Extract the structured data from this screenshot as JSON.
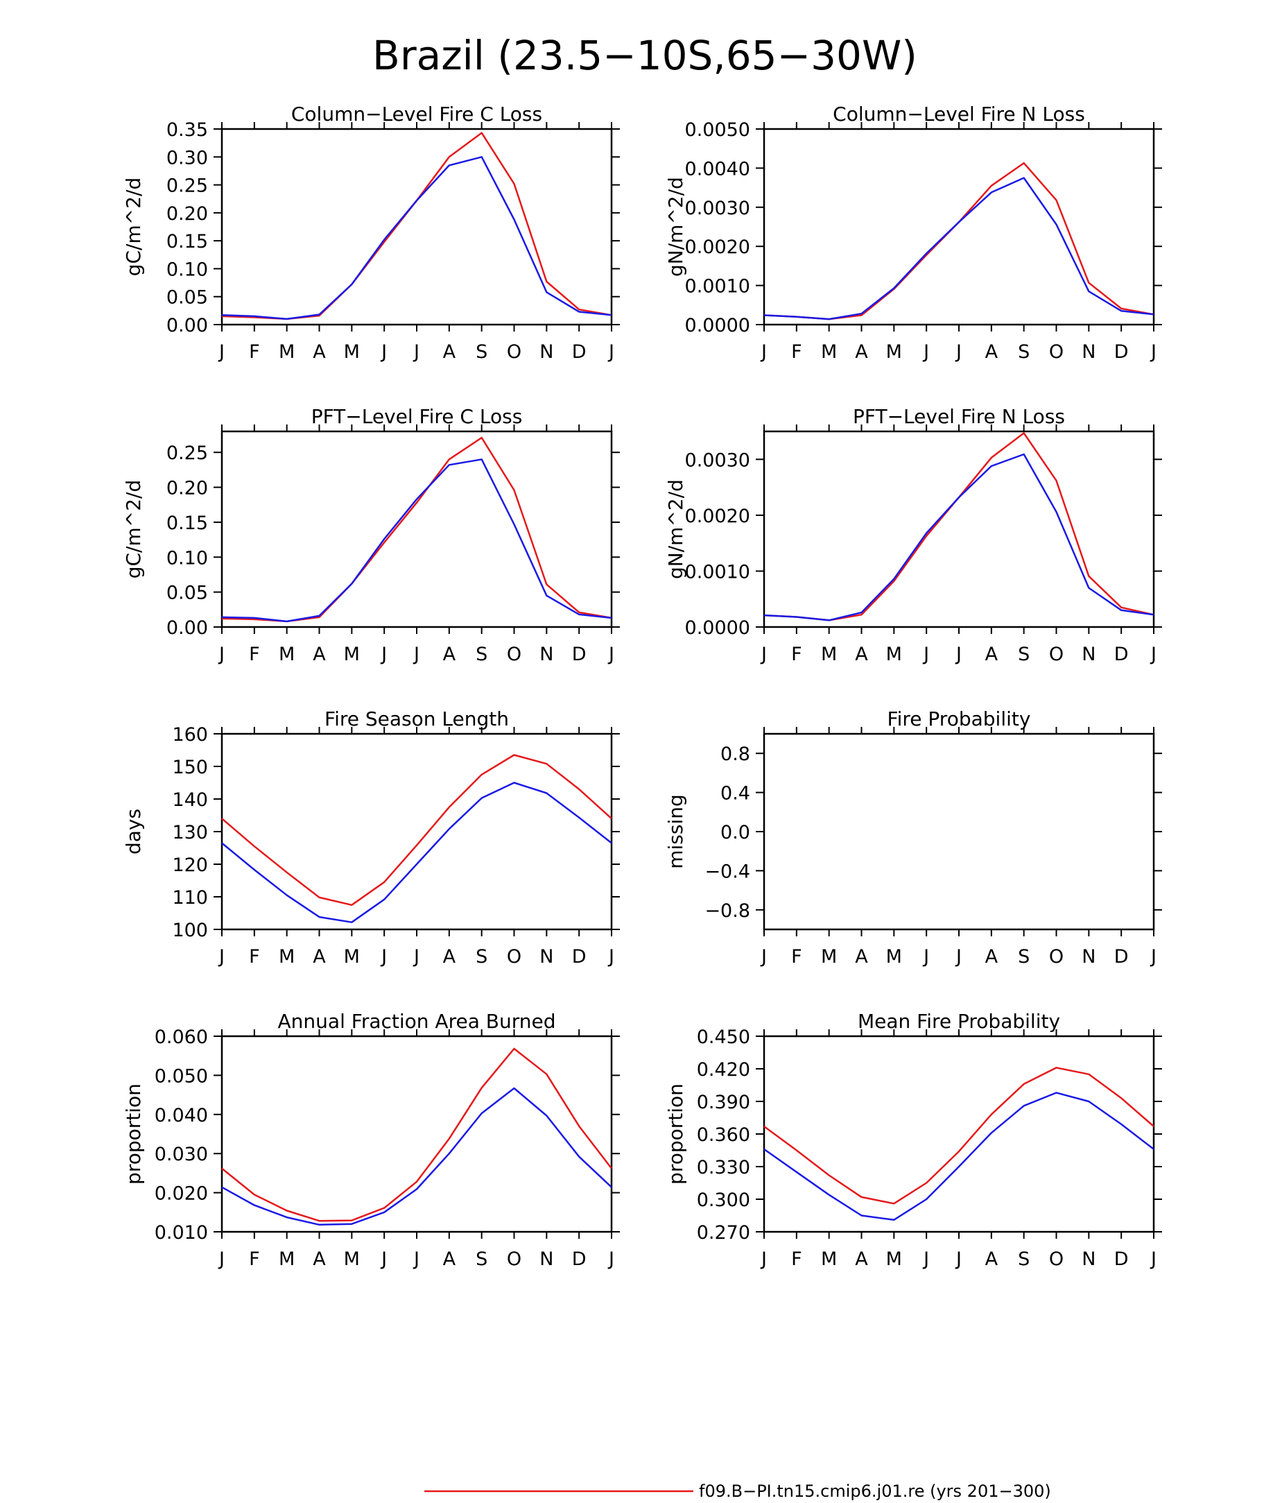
{
  "figure": {
    "title": "Brazil (23.5−10S,65−30W)",
    "legend": [
      {
        "label": "f09.B−PI.tn15.cmip6.j01.re (yrs 201−300)",
        "color": "#e41a1c"
      }
    ]
  },
  "colors": {
    "case1": "#e41a1c",
    "case2": "#1a1ae4"
  },
  "chart_data": [
    {
      "type": "line",
      "title": "Column−Level Fire C Loss",
      "ylabel": "gC/m^2/d",
      "categories": [
        "J",
        "F",
        "M",
        "A",
        "M",
        "J",
        "J",
        "A",
        "S",
        "O",
        "N",
        "D",
        "J"
      ],
      "ylim": [
        0,
        0.35
      ],
      "yticks": [
        0,
        0.05,
        0.1,
        0.15,
        0.2,
        0.25,
        0.3,
        0.35
      ],
      "ytick_labels": [
        "0.00",
        "0.05",
        "0.10",
        "0.15",
        "0.20",
        "0.25",
        "0.30",
        "0.35"
      ],
      "series": [
        {
          "color": "#e41a1c",
          "values": [
            0.015,
            0.013,
            0.01,
            0.016,
            0.072,
            0.148,
            0.222,
            0.3,
            0.343,
            0.252,
            0.077,
            0.027,
            0.017
          ]
        },
        {
          "color": "#1a1ae4",
          "values": [
            0.017,
            0.015,
            0.01,
            0.018,
            0.072,
            0.152,
            0.222,
            0.285,
            0.3,
            0.188,
            0.058,
            0.023,
            0.017
          ]
        }
      ]
    },
    {
      "type": "line",
      "title": "Column−Level Fire N Loss",
      "ylabel": "gN/m^2/d",
      "categories": [
        "J",
        "F",
        "M",
        "A",
        "M",
        "J",
        "J",
        "A",
        "S",
        "O",
        "N",
        "D",
        "J"
      ],
      "ylim": [
        0,
        0.005
      ],
      "yticks": [
        0,
        0.001,
        0.002,
        0.003,
        0.004,
        0.005
      ],
      "ytick_labels": [
        "0.0000",
        "0.0010",
        "0.0020",
        "0.0030",
        "0.0040",
        "0.0050"
      ],
      "series": [
        {
          "color": "#e41a1c",
          "values": [
            0.00024,
            0.0002,
            0.00014,
            0.00024,
            0.00091,
            0.00178,
            0.00262,
            0.00355,
            0.00413,
            0.00318,
            0.00107,
            0.00041,
            0.00026
          ]
        },
        {
          "color": "#1a1ae4",
          "values": [
            0.00024,
            0.0002,
            0.00014,
            0.00028,
            0.00093,
            0.00182,
            0.00262,
            0.00338,
            0.00375,
            0.00256,
            0.00085,
            0.00035,
            0.00026
          ]
        }
      ]
    },
    {
      "type": "line",
      "title": "PFT−Level Fire C Loss",
      "ylabel": "gC/m^2/d",
      "categories": [
        "J",
        "F",
        "M",
        "A",
        "M",
        "J",
        "J",
        "A",
        "S",
        "O",
        "N",
        "D",
        "J"
      ],
      "ylim": [
        0,
        0.28
      ],
      "yticks": [
        0,
        0.05,
        0.1,
        0.15,
        0.2,
        0.25
      ],
      "ytick_labels": [
        "0.00",
        "0.05",
        "0.10",
        "0.15",
        "0.20",
        "0.25"
      ],
      "series": [
        {
          "color": "#e41a1c",
          "values": [
            0.012,
            0.011,
            0.008,
            0.014,
            0.062,
            0.121,
            0.178,
            0.24,
            0.271,
            0.196,
            0.061,
            0.021,
            0.013
          ]
        },
        {
          "color": "#1a1ae4",
          "values": [
            0.014,
            0.013,
            0.008,
            0.016,
            0.062,
            0.126,
            0.183,
            0.232,
            0.24,
            0.147,
            0.045,
            0.018,
            0.013
          ]
        }
      ]
    },
    {
      "type": "line",
      "title": "PFT−Level Fire N Loss",
      "ylabel": "gN/m^2/d",
      "categories": [
        "J",
        "F",
        "M",
        "A",
        "M",
        "J",
        "J",
        "A",
        "S",
        "O",
        "N",
        "D",
        "J"
      ],
      "ylim": [
        0,
        0.0035
      ],
      "yticks": [
        0,
        0.001,
        0.002,
        0.003
      ],
      "ytick_labels": [
        "0.0000",
        "0.0010",
        "0.0020",
        "0.0030"
      ],
      "series": [
        {
          "color": "#e41a1c",
          "values": [
            0.00021,
            0.00018,
            0.00012,
            0.00022,
            0.00082,
            0.00163,
            0.00232,
            0.00303,
            0.00347,
            0.00262,
            0.00091,
            0.00035,
            0.00022
          ]
        },
        {
          "color": "#1a1ae4",
          "values": [
            0.00021,
            0.00018,
            0.00012,
            0.00026,
            0.00086,
            0.00168,
            0.00232,
            0.00288,
            0.00309,
            0.00206,
            0.0007,
            0.0003,
            0.00022
          ]
        }
      ]
    },
    {
      "type": "line",
      "title": "Fire Season Length",
      "ylabel": "days",
      "categories": [
        "J",
        "F",
        "M",
        "A",
        "M",
        "J",
        "J",
        "A",
        "S",
        "O",
        "N",
        "D",
        "J"
      ],
      "ylim": [
        100,
        160
      ],
      "yticks": [
        100,
        110,
        120,
        130,
        140,
        150,
        160
      ],
      "ytick_labels": [
        "100",
        "110",
        "120",
        "130",
        "140",
        "150",
        "160"
      ],
      "series": [
        {
          "color": "#e41a1c",
          "values": [
            134,
            125.5,
            117.5,
            109.8,
            107.5,
            114.5,
            125.8,
            137.5,
            147.5,
            153.5,
            150.8,
            143.0,
            134
          ]
        },
        {
          "color": "#1a1ae4",
          "values": [
            126.5,
            118.3,
            110.5,
            103.8,
            102.2,
            109.2,
            120.0,
            130.8,
            140.3,
            145.0,
            141.8,
            134.3,
            126.5
          ]
        }
      ]
    },
    {
      "type": "line",
      "title": "Fire Probability",
      "ylabel": "missing",
      "categories": [
        "J",
        "F",
        "M",
        "A",
        "M",
        "J",
        "J",
        "A",
        "S",
        "O",
        "N",
        "D",
        "J"
      ],
      "ylim": [
        -1.0,
        1.0
      ],
      "yticks": [
        -0.8,
        -0.4,
        0.0,
        0.4,
        0.8
      ],
      "ytick_labels": [
        "−0.8",
        "−0.4",
        "0.0",
        "0.4",
        "0.8"
      ],
      "series": []
    },
    {
      "type": "line",
      "title": "Annual Fraction Area Burned",
      "ylabel": "proportion",
      "categories": [
        "J",
        "F",
        "M",
        "A",
        "M",
        "J",
        "J",
        "A",
        "S",
        "O",
        "N",
        "D",
        "J"
      ],
      "ylim": [
        0.01,
        0.06
      ],
      "yticks": [
        0.01,
        0.02,
        0.03,
        0.04,
        0.05,
        0.06
      ],
      "ytick_labels": [
        "0.010",
        "0.020",
        "0.030",
        "0.040",
        "0.050",
        "0.060"
      ],
      "series": [
        {
          "color": "#e41a1c",
          "values": [
            0.0262,
            0.0195,
            0.0154,
            0.0128,
            0.0129,
            0.0161,
            0.0228,
            0.0338,
            0.0468,
            0.0568,
            0.0503,
            0.037,
            0.0262
          ]
        },
        {
          "color": "#1a1ae4",
          "values": [
            0.0214,
            0.0168,
            0.0137,
            0.0118,
            0.012,
            0.015,
            0.0209,
            0.03,
            0.0403,
            0.0467,
            0.0397,
            0.0292,
            0.0214
          ]
        }
      ]
    },
    {
      "type": "line",
      "title": "Mean Fire Probability",
      "ylabel": "proportion",
      "categories": [
        "J",
        "F",
        "M",
        "A",
        "M",
        "J",
        "J",
        "A",
        "S",
        "O",
        "N",
        "D",
        "J"
      ],
      "ylim": [
        0.27,
        0.45
      ],
      "yticks": [
        0.27,
        0.3,
        0.33,
        0.36,
        0.39,
        0.42,
        0.45
      ],
      "ytick_labels": [
        "0.270",
        "0.300",
        "0.330",
        "0.360",
        "0.390",
        "0.420",
        "0.450"
      ],
      "series": [
        {
          "color": "#e41a1c",
          "values": [
            0.367,
            0.345,
            0.322,
            0.302,
            0.296,
            0.315,
            0.344,
            0.378,
            0.406,
            0.421,
            0.415,
            0.393,
            0.367
          ]
        },
        {
          "color": "#1a1ae4",
          "values": [
            0.346,
            0.325,
            0.304,
            0.285,
            0.281,
            0.3,
            0.33,
            0.361,
            0.386,
            0.398,
            0.39,
            0.369,
            0.346
          ]
        }
      ]
    }
  ]
}
